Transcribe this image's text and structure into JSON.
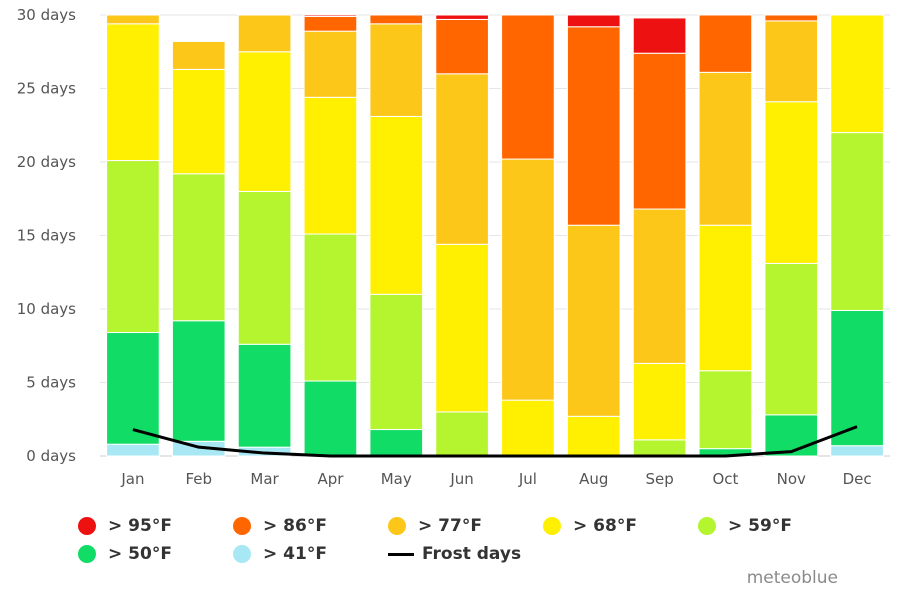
{
  "chart_data": {
    "type": "bar",
    "stacked": true,
    "categories": [
      "Jan",
      "Feb",
      "Mar",
      "Apr",
      "May",
      "Jun",
      "Jul",
      "Aug",
      "Sep",
      "Oct",
      "Nov",
      "Dec"
    ],
    "ylim": [
      0,
      30
    ],
    "yticks": [
      0,
      5,
      10,
      15,
      20,
      25,
      30
    ],
    "ytick_labels": [
      "0 days",
      "5 days",
      "10 days",
      "15 days",
      "20 days",
      "25 days",
      "30 days"
    ],
    "grid": true,
    "legend_position": "bottom",
    "series": [
      {
        "name": "> 41°F",
        "color": "#a8e8f5",
        "values": [
          0.8,
          1.0,
          0.6,
          0,
          0,
          0,
          0,
          0,
          0,
          0,
          0,
          0.7
        ]
      },
      {
        "name": "> 50°F",
        "color": "#11dd66",
        "values": [
          7.6,
          8.2,
          7.0,
          5.1,
          1.8,
          0,
          0,
          0,
          0,
          0.5,
          2.8,
          9.2
        ]
      },
      {
        "name": "> 59°F",
        "color": "#b5f530",
        "values": [
          11.7,
          10.0,
          10.4,
          10.0,
          9.2,
          3.0,
          0,
          0,
          1.1,
          5.3,
          10.3,
          12.1
        ]
      },
      {
        "name": "> 68°F",
        "color": "#ffef00",
        "values": [
          9.3,
          7.1,
          9.5,
          9.3,
          12.1,
          11.4,
          3.8,
          2.7,
          5.2,
          9.9,
          11.0,
          8.1
        ]
      },
      {
        "name": "> 77°F",
        "color": "#fcc719",
        "values": [
          0.6,
          1.9,
          2.5,
          4.5,
          6.3,
          11.6,
          16.4,
          13.0,
          10.5,
          10.4,
          5.5,
          0
        ]
      },
      {
        "name": "> 86°F",
        "color": "#ff6600",
        "values": [
          0,
          0,
          0,
          1.0,
          0.8,
          3.7,
          9.8,
          13.5,
          10.6,
          3.9,
          0.4,
          0
        ]
      },
      {
        "name": "> 95°F",
        "color": "#ee1111",
        "values": [
          0,
          0,
          0,
          0.2,
          0,
          0.5,
          0,
          0.8,
          2.4,
          0,
          0,
          0
        ]
      }
    ],
    "lines": [
      {
        "name": "Frost days",
        "color": "#000000",
        "values": [
          1.8,
          0.6,
          0.2,
          0,
          0,
          0,
          0,
          0,
          0,
          0,
          0.3,
          2.0
        ]
      }
    ]
  },
  "legend": {
    "row1": [
      {
        "label": "> 95°F",
        "color": "#ee1111"
      },
      {
        "label": "> 86°F",
        "color": "#ff6600"
      },
      {
        "label": "> 77°F",
        "color": "#fcc719"
      },
      {
        "label": "> 68°F",
        "color": "#ffef00"
      },
      {
        "label": "> 59°F",
        "color": "#b5f530"
      }
    ],
    "row2": [
      {
        "label": "> 50°F",
        "color": "#11dd66"
      },
      {
        "label": "> 41°F",
        "color": "#a8e8f5"
      },
      {
        "label": "Frost days",
        "color": "#000000",
        "kind": "line"
      }
    ]
  },
  "credit": "meteoblue"
}
